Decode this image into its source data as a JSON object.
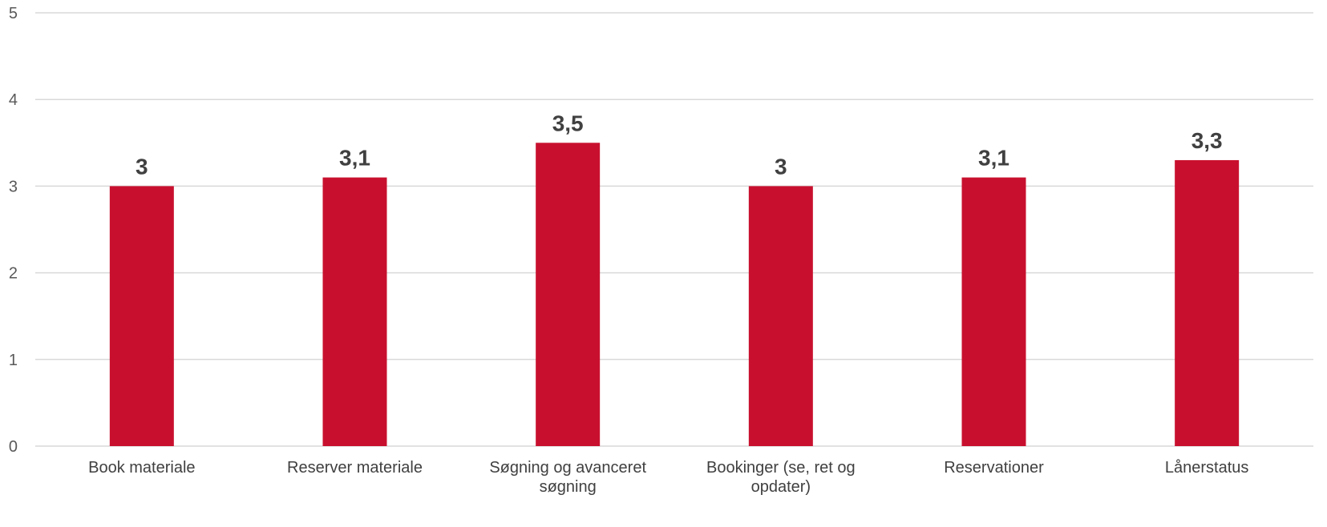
{
  "chart_data": {
    "type": "bar",
    "categories": [
      [
        "Book materiale"
      ],
      [
        "Reserver materiale"
      ],
      [
        "Søgning og avanceret",
        "søgning"
      ],
      [
        "Bookinger (se, ret og",
        "opdater)"
      ],
      [
        "Reservationer"
      ],
      [
        "Lånerstatus"
      ]
    ],
    "values": [
      3,
      3.1,
      3.5,
      3,
      3.1,
      3.3
    ],
    "data_labels": [
      "3",
      "3,1",
      "3,5",
      "3",
      "3,1",
      "3,3"
    ],
    "y_ticks": [
      0,
      1,
      2,
      3,
      4,
      5
    ],
    "ylim": [
      0,
      5
    ],
    "grid": true,
    "legend": "none",
    "bar_color": "#c8102e"
  }
}
